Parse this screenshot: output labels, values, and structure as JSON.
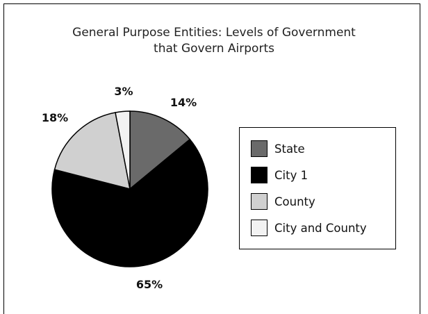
{
  "chart_data": {
    "type": "pie",
    "title_lines": [
      "General Purpose Entities: Levels of Government",
      "that Govern Airports"
    ],
    "slices": [
      {
        "label": "State",
        "value": 14,
        "display": "14%",
        "color": "#6a6a6a"
      },
      {
        "label": "City 1",
        "value": 65,
        "display": "65%",
        "color": "#000000"
      },
      {
        "label": "County",
        "value": 18,
        "display": "18%",
        "color": "#d0d0d0"
      },
      {
        "label": "City and County",
        "value": 3,
        "display": "3%",
        "color": "#f2f2f2"
      }
    ],
    "legend_position": "right"
  }
}
